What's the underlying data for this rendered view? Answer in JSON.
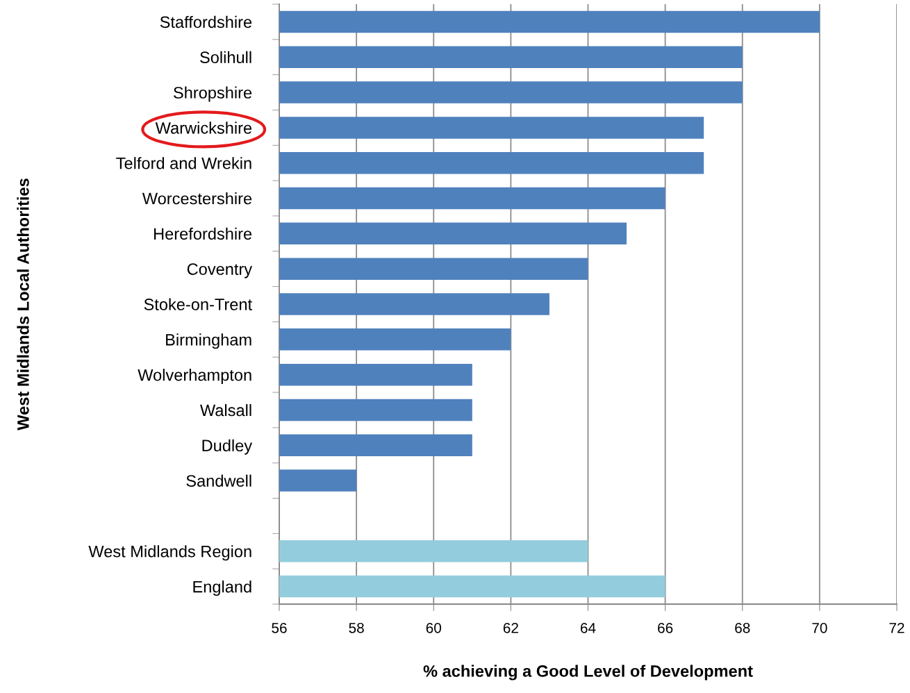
{
  "chart_data": {
    "type": "bar",
    "orientation": "horizontal",
    "categories": [
      "Staffordshire",
      "Solihull",
      "Shropshire",
      "Warwickshire",
      "Telford and Wrekin",
      "Worcestershire",
      "Herefordshire",
      "Coventry",
      "Stoke-on-Trent",
      "Birmingham",
      "Wolverhampton",
      "Walsall",
      "Dudley",
      "Sandwell",
      null,
      "West Midlands Region",
      "England"
    ],
    "values": [
      70,
      68,
      68,
      67,
      67,
      66,
      65,
      64,
      63,
      62,
      61,
      61,
      61,
      58,
      null,
      64,
      66
    ],
    "colors": [
      "#4f81bd",
      "#4f81bd",
      "#4f81bd",
      "#4f81bd",
      "#4f81bd",
      "#4f81bd",
      "#4f81bd",
      "#4f81bd",
      "#4f81bd",
      "#4f81bd",
      "#4f81bd",
      "#4f81bd",
      "#4f81bd",
      "#4f81bd",
      "#4f81bd",
      "#93cddd",
      "#93cddd"
    ],
    "xlabel": "% achieving a Good Level of Development",
    "ylabel": "West Midlands Local Authorities",
    "xlim": [
      56,
      72
    ],
    "xticks": [
      56,
      58,
      60,
      62,
      64,
      66,
      68,
      70,
      72
    ],
    "grid": "x"
  }
}
